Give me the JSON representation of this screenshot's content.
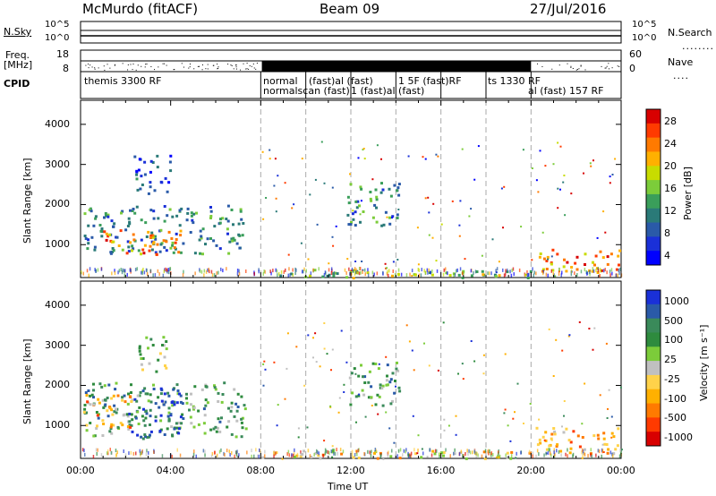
{
  "header": {
    "station": "McMurdo (fitACF)",
    "beam": "Beam 09",
    "date": "27/Jul/2016"
  },
  "top_panels": {
    "nsky_label": "N.Sky",
    "nsky_ticks": [
      "10^5",
      "10^0"
    ],
    "nsearch_label": "N.Search",
    "nsearch_ticks": [
      "10^5",
      "10^0"
    ],
    "freq_label_1": "Freq.",
    "freq_label_2": "[MHz]",
    "freq_ticks": [
      "18",
      "8"
    ],
    "nave_label": "Nave",
    "nave_ticks": [
      "60",
      "0"
    ],
    "cpid_label": "CPID",
    "cpid_entries": [
      {
        "text": "themis 3300 RF",
        "row": 0
      },
      {
        "text": "normal",
        "row": 0
      },
      {
        "text": "normalscan (fast)",
        "row": 1
      },
      {
        "text": "(fast)al (fast)",
        "row": 0
      },
      {
        "text": "1 (fast)al (fast)",
        "row": 1
      },
      {
        "text": "1 5F (fast)RF",
        "row": 0
      },
      {
        "text": "ts 1330 RF",
        "row": 0
      },
      {
        "text": "al (fast) 157 RF",
        "row": 1
      }
    ]
  },
  "chart_data": [
    {
      "type": "heatmap",
      "title": "",
      "xlabel": "Time UT",
      "ylabel": "Slant Range [km]",
      "x_ticks": [
        "00:00",
        "04:00",
        "08:00",
        "12:00",
        "16:00",
        "20:00",
        "00:00"
      ],
      "y_ticks": [
        "1000",
        "2000",
        "3000",
        "4000"
      ],
      "ylim": [
        180,
        4600
      ],
      "xlim_hours": [
        0,
        24
      ],
      "colorbar": {
        "label": "Power [dB]",
        "ticks": [
          "28",
          "24",
          "20",
          "16",
          "12",
          "8",
          "4"
        ],
        "colors": [
          "#d80000",
          "#ff3a00",
          "#ff7a00",
          "#ffb000",
          "#c8dc00",
          "#7ccc3a",
          "#3a9e5a",
          "#2a7a78",
          "#2a5aa8",
          "#1a30d8",
          "#0000ff"
        ]
      },
      "regions": [
        {
          "t0": 0.1,
          "t1": 7.3,
          "r0": 800,
          "r1": 2000,
          "level": "12"
        },
        {
          "t0": 1.0,
          "t1": 4.5,
          "r0": 750,
          "r1": 1400,
          "level": "24"
        },
        {
          "t0": 2.3,
          "t1": 4.0,
          "r0": 2300,
          "r1": 3300,
          "level": "8"
        },
        {
          "t0": 11.8,
          "t1": 14.2,
          "r0": 1500,
          "r1": 2600,
          "level": "12"
        },
        {
          "t0": 20.2,
          "t1": 23.9,
          "r0": 300,
          "r1": 900,
          "level": "24"
        },
        {
          "t0": 8.0,
          "t1": 20.0,
          "r0": 200,
          "r1": 400,
          "level": "16"
        }
      ]
    },
    {
      "type": "heatmap",
      "title": "",
      "xlabel": "Time UT",
      "ylabel": "Slant Range [km]",
      "x_ticks": [
        "00:00",
        "04:00",
        "08:00",
        "12:00",
        "16:00",
        "20:00",
        "00:00"
      ],
      "y_ticks": [
        "1000",
        "2000",
        "3000",
        "4000"
      ],
      "ylim": [
        180,
        4600
      ],
      "xlim_hours": [
        0,
        24
      ],
      "colorbar": {
        "label": "Velocity [m s⁻¹]",
        "ticks": [
          "1000",
          "500",
          "100",
          "25",
          "-25",
          "-100",
          "-500",
          "-1000"
        ],
        "colors": [
          "#1a30d8",
          "#2a5aa8",
          "#3a8a5a",
          "#2e8b3e",
          "#7ccc3a",
          "#c0c0c0",
          "#ffd24a",
          "#ffb000",
          "#ff7a00",
          "#ff3a00",
          "#d80000"
        ]
      },
      "regions": [
        {
          "t0": 0.1,
          "t1": 7.3,
          "r0": 750,
          "r1": 2100,
          "level": "100"
        },
        {
          "t0": 2.0,
          "t1": 4.5,
          "r0": 700,
          "r1": 2000,
          "level": "500"
        },
        {
          "t0": 0.1,
          "t1": 2.2,
          "r0": 900,
          "r1": 1800,
          "level": "-100"
        },
        {
          "t0": 2.5,
          "t1": 3.8,
          "r0": 2300,
          "r1": 3300,
          "level": "25"
        },
        {
          "t0": 11.8,
          "t1": 14.2,
          "r0": 1500,
          "r1": 2600,
          "level": "100"
        },
        {
          "t0": 20.2,
          "t1": 23.9,
          "r0": 300,
          "r1": 1000,
          "level": "-100"
        },
        {
          "t0": 8.0,
          "t1": 20.0,
          "r0": 200,
          "r1": 400,
          "level": "-25"
        }
      ]
    }
  ]
}
